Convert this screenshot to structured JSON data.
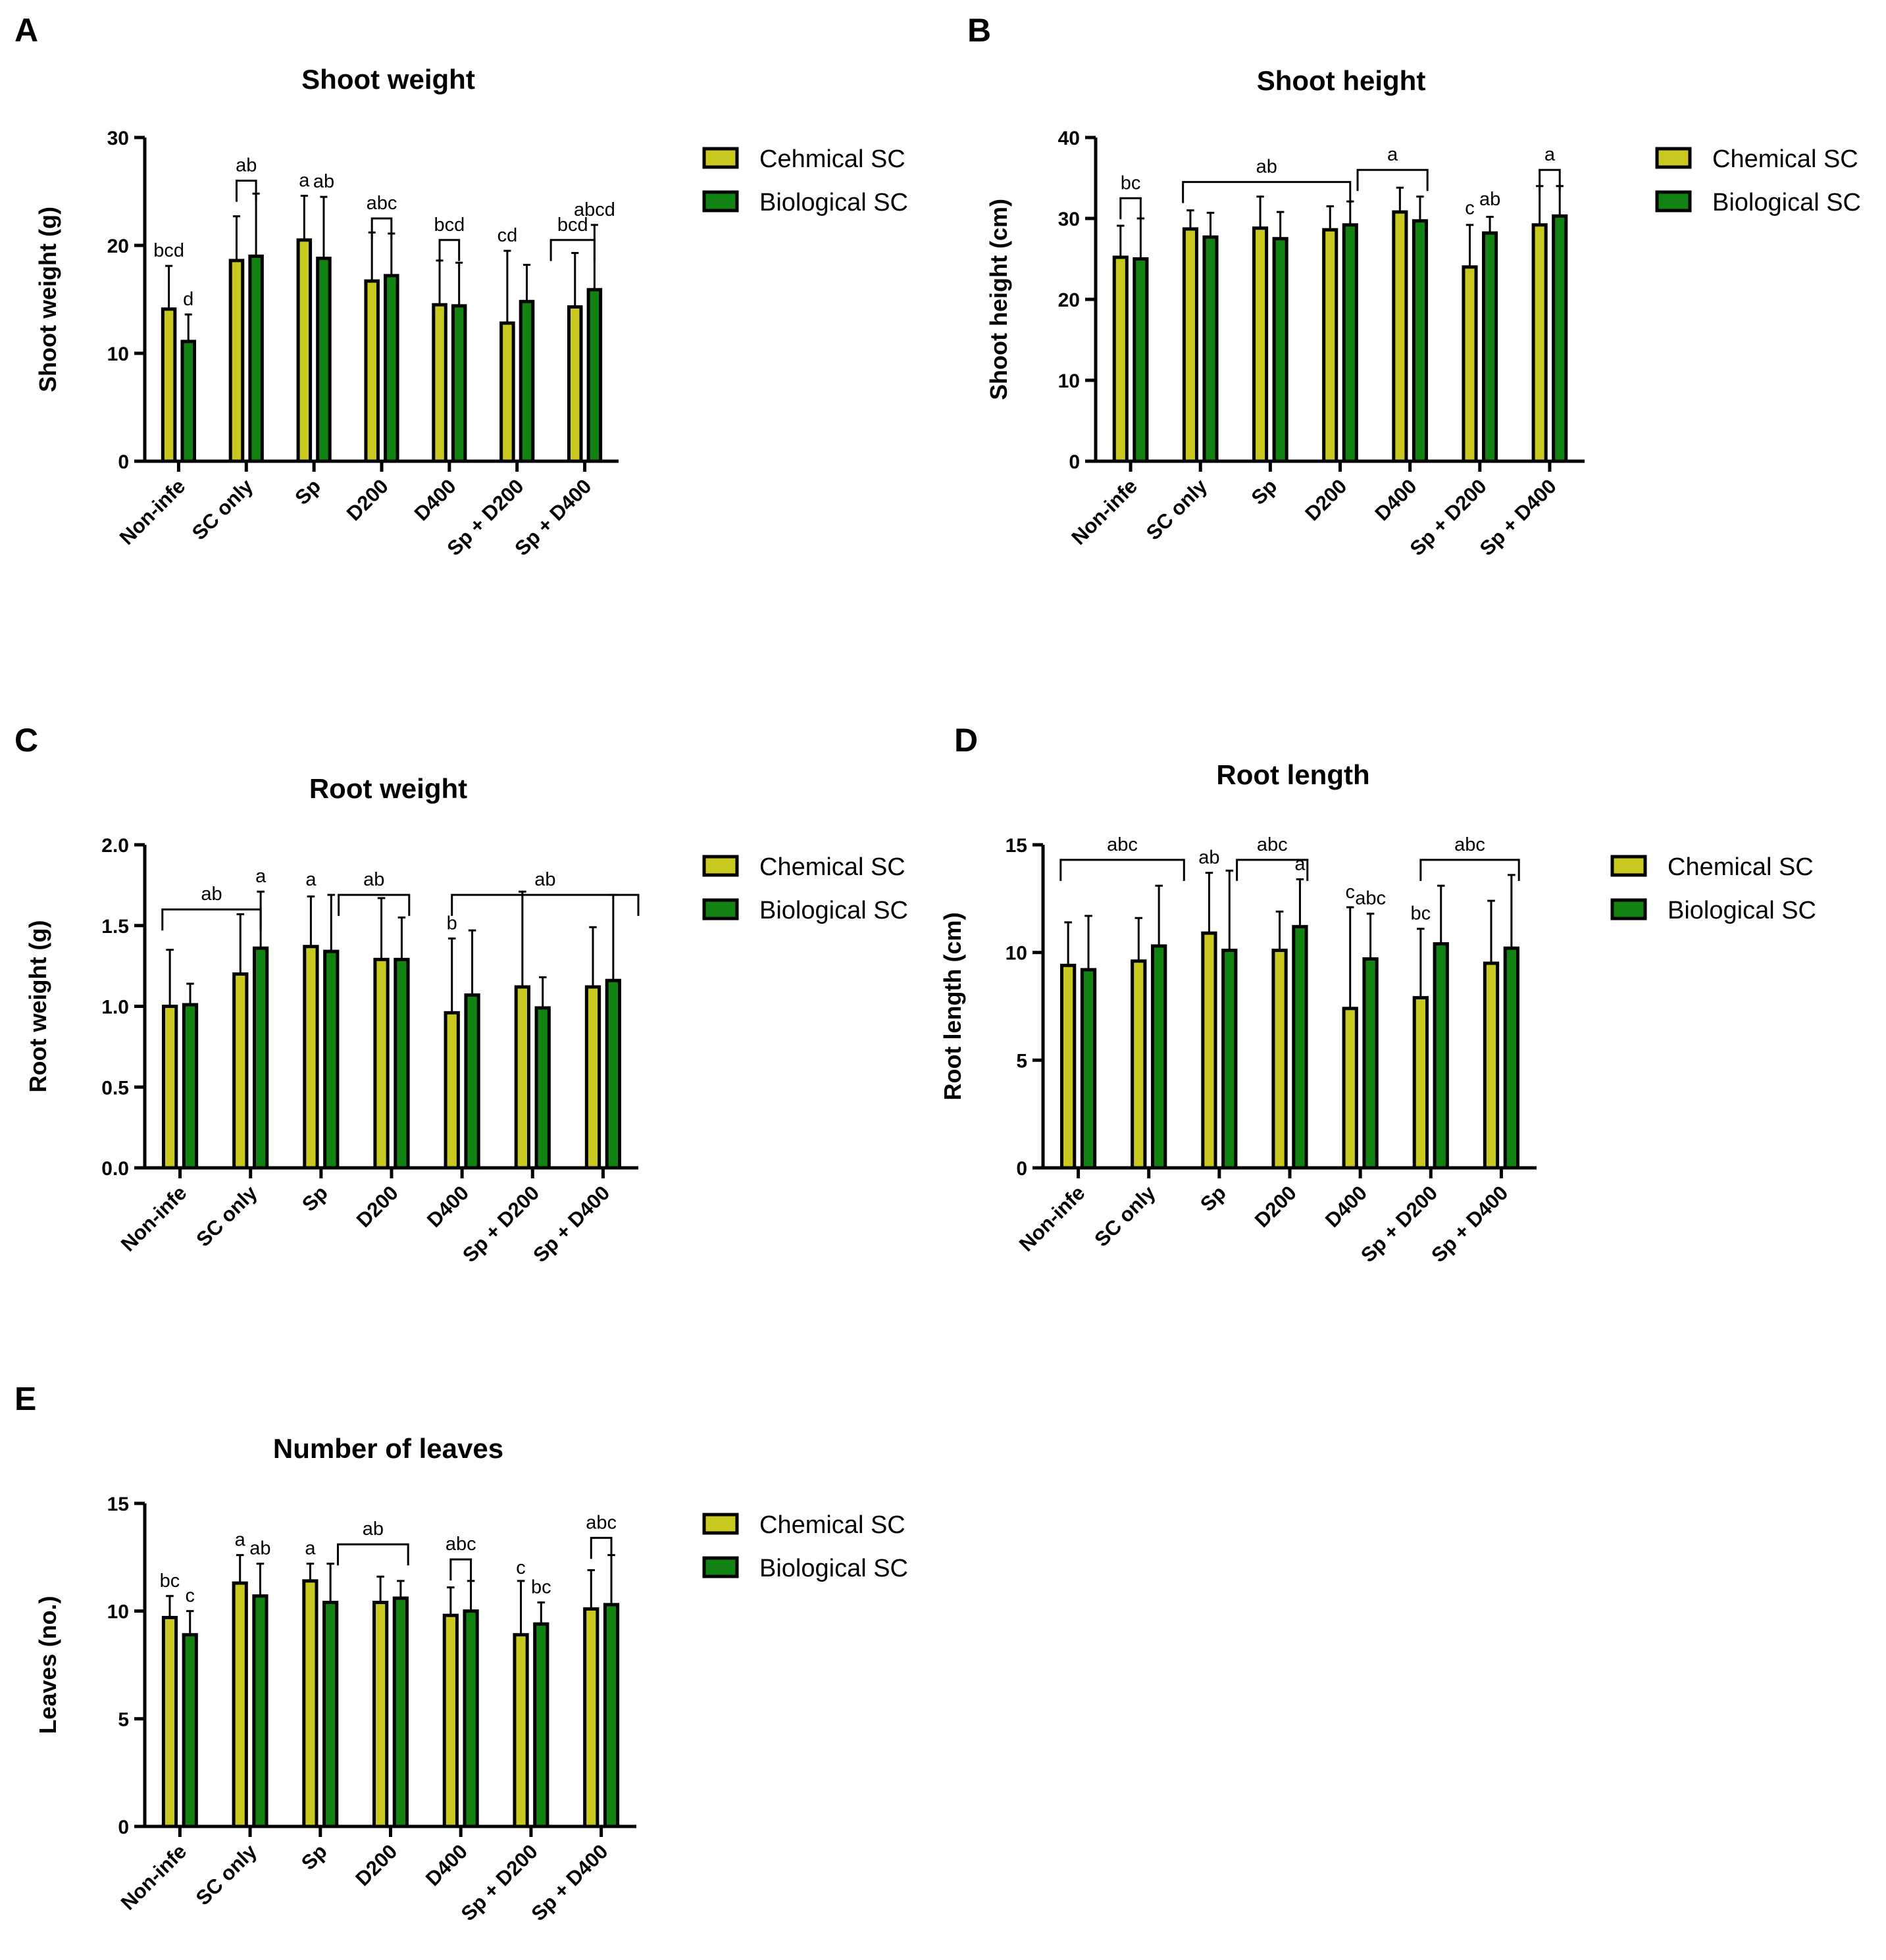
{
  "colors": {
    "chemical": "#c8c820",
    "biological": "#128212",
    "stroke": "#000000"
  },
  "chart_data": [
    {
      "panel": "A",
      "type": "bar",
      "title": "Shoot weight",
      "ylabel": "Shoot weight (g)",
      "ylim": [
        0,
        30
      ],
      "yticks": [
        0,
        10,
        20,
        30
      ],
      "ytick_labels": [
        "0",
        "10",
        "20",
        "30"
      ],
      "categories": [
        "Non-infe",
        "SC only",
        "Sp",
        "D200",
        "D400",
        "Sp + D200",
        "Sp + D400"
      ],
      "legend": [
        "Cehmical SC",
        "Biological SC"
      ],
      "series": [
        {
          "name": "Cehmical SC",
          "values": [
            14.1,
            18.6,
            20.5,
            16.7,
            14.5,
            12.8,
            14.3
          ],
          "errors": [
            4.0,
            4.1,
            4.1,
            4.5,
            4.1,
            6.7,
            5.0
          ]
        },
        {
          "name": "Biological SC",
          "values": [
            11.1,
            19.0,
            18.8,
            17.2,
            14.4,
            14.8,
            15.9
          ],
          "errors": [
            2.5,
            5.8,
            5.7,
            3.9,
            4.0,
            3.4,
            6.0
          ]
        }
      ],
      "annotations": [
        {
          "text": "bcd",
          "x": 0,
          "s": 0,
          "y": 18.1
        },
        {
          "text": "d",
          "x": 0,
          "s": 1,
          "y": 13.6
        },
        {
          "text": "ab",
          "x1": 1,
          "x2": 1,
          "y": 26.0
        },
        {
          "text": "a",
          "x": 2,
          "s": 0,
          "y": 24.6
        },
        {
          "text": "ab",
          "x": 2,
          "s": 1,
          "y": 24.5
        },
        {
          "text": "abc",
          "x1": 3,
          "x2": 3,
          "y": 22.5
        },
        {
          "text": "bcd",
          "x1": 4,
          "x2": 4,
          "y": 20.5
        },
        {
          "text": "cd",
          "x": 5,
          "s": 0,
          "y": 19.5
        },
        {
          "text": "bcd",
          "x1": 5.5,
          "x2": 6,
          "y": 20.5
        },
        {
          "text": "abcd",
          "x": 6,
          "s": 1,
          "y": 21.9
        }
      ]
    },
    {
      "panel": "B",
      "type": "bar",
      "title": "Shoot height",
      "ylabel": "Shoot height (cm)",
      "ylim": [
        0,
        40
      ],
      "yticks": [
        0,
        10,
        20,
        30,
        40
      ],
      "ytick_labels": [
        "0",
        "10",
        "20",
        "30",
        "40"
      ],
      "categories": [
        "Non-infe",
        "SC only",
        "Sp",
        "D200",
        "D400",
        "Sp + D200",
        "Sp + D400"
      ],
      "legend": [
        "Chemical SC",
        "Biological SC"
      ],
      "series": [
        {
          "name": "Chemical SC",
          "values": [
            25.2,
            28.7,
            28.8,
            28.6,
            30.8,
            24.0,
            29.2
          ],
          "errors": [
            3.9,
            2.3,
            3.9,
            2.9,
            3.0,
            5.2,
            4.8
          ]
        },
        {
          "name": "Biological SC",
          "values": [
            25.0,
            27.7,
            27.5,
            29.2,
            29.7,
            28.2,
            30.3
          ],
          "errors": [
            5.0,
            3.0,
            3.3,
            2.9,
            3.0,
            2.0,
            3.7
          ]
        }
      ],
      "annotations": [
        {
          "text": "bc",
          "x1": 0,
          "x2": 0,
          "y": 32.5
        },
        {
          "text": "ab",
          "x1": 0.75,
          "x2": 3,
          "y": 34.5
        },
        {
          "text": "a",
          "x1": 3.25,
          "x2": 4.25,
          "y": 36.0
        },
        {
          "text": "c",
          "x": 5,
          "s": 0,
          "y": 29.4
        },
        {
          "text": "ab",
          "x": 5,
          "s": 1,
          "y": 30.5
        },
        {
          "text": "a",
          "x1": 6,
          "x2": 6,
          "y": 36.0
        }
      ]
    },
    {
      "panel": "C",
      "type": "bar",
      "title": "Root weight",
      "ylabel": "Root weight (g)",
      "ylim": [
        0,
        2.0
      ],
      "yticks": [
        0,
        0.5,
        1.0,
        1.5,
        2.0
      ],
      "ytick_labels": [
        "0.0",
        "0.5",
        "1.0",
        "1.5",
        "2.0"
      ],
      "categories": [
        "Non-infe",
        "SC only",
        "Sp",
        "D200",
        "D400",
        "Sp + D200",
        "Sp + D400"
      ],
      "legend": [
        "Chemical SC",
        "Biological SC"
      ],
      "series": [
        {
          "name": "Chemical SC",
          "values": [
            1.0,
            1.2,
            1.37,
            1.29,
            0.96,
            1.12,
            1.12
          ],
          "errors": [
            0.35,
            0.37,
            0.31,
            0.38,
            0.46,
            0.59,
            0.37
          ]
        },
        {
          "name": "Biological SC",
          "values": [
            1.01,
            1.36,
            1.34,
            1.29,
            1.07,
            0.99,
            1.16
          ],
          "errors": [
            0.13,
            0.35,
            0.35,
            0.26,
            0.4,
            0.19,
            0.53
          ]
        }
      ],
      "annotations": [
        {
          "text": "ab",
          "x1": -0.25,
          "x2": 1.0,
          "y": 1.6
        },
        {
          "text": "a",
          "x": 1,
          "s": 1,
          "y": 1.71
        },
        {
          "text": "a",
          "x": 2,
          "s": 0,
          "y": 1.69
        },
        {
          "text": "ab",
          "x1": 2.25,
          "x2": 3.25,
          "y": 1.69
        },
        {
          "text": "b",
          "x": 4,
          "s": 0,
          "y": 1.42
        },
        {
          "text": "ab",
          "x1": 4.0,
          "x2": 6.5,
          "y": 1.69
        }
      ]
    },
    {
      "panel": "D",
      "type": "bar",
      "title": "Root length",
      "ylabel": "Root length (cm)",
      "ylim": [
        0,
        15
      ],
      "yticks": [
        0,
        5,
        10,
        15
      ],
      "ytick_labels": [
        "0",
        "5",
        "10",
        "15"
      ],
      "categories": [
        "Non-infe",
        "SC only",
        "Sp",
        "D200",
        "D400",
        "Sp + D200",
        "Sp + D400"
      ],
      "legend": [
        "Chemical SC",
        "Biological SC"
      ],
      "series": [
        {
          "name": "Chemical SC",
          "values": [
            9.4,
            9.6,
            10.9,
            10.1,
            7.4,
            7.9,
            9.5
          ],
          "errors": [
            2.0,
            2.0,
            2.8,
            1.8,
            4.7,
            3.2,
            2.9
          ]
        },
        {
          "name": "Biological SC",
          "values": [
            9.2,
            10.3,
            10.1,
            11.2,
            9.7,
            10.4,
            10.2
          ],
          "errors": [
            2.5,
            2.8,
            3.7,
            2.2,
            2.1,
            2.7,
            3.4
          ]
        }
      ],
      "annotations": [
        {
          "text": "abc",
          "x1": -0.25,
          "x2": 1.5,
          "y": 14.3
        },
        {
          "text": "ab",
          "x": 2,
          "s": 0,
          "y": 13.7
        },
        {
          "text": "abc",
          "x1": 2.25,
          "x2": 3.25,
          "y": 14.3
        },
        {
          "text": "a",
          "x": 3,
          "s": 1,
          "y": 13.4
        },
        {
          "text": "c",
          "x": 4,
          "s": 0,
          "y": 12.1
        },
        {
          "text": "abc",
          "x": 4,
          "s": 1,
          "y": 11.8
        },
        {
          "text": "bc",
          "x": 5,
          "s": 0,
          "y": 11.1
        },
        {
          "text": "abc",
          "x1": 5.0,
          "x2": 6.25,
          "y": 14.3
        }
      ]
    },
    {
      "panel": "E",
      "type": "bar",
      "title": "Number of leaves",
      "ylabel": "Leaves (no.)",
      "ylim": [
        0,
        15
      ],
      "yticks": [
        0,
        5,
        10,
        15
      ],
      "ytick_labels": [
        "0",
        "5",
        "10",
        "15"
      ],
      "categories": [
        "Non-infe",
        "SC only",
        "Sp",
        "D200",
        "D400",
        "Sp + D200",
        "Sp + D400"
      ],
      "legend": [
        "Chemical SC",
        "Biological SC"
      ],
      "series": [
        {
          "name": "Chemical SC",
          "values": [
            9.7,
            11.3,
            11.4,
            10.4,
            9.8,
            8.9,
            10.1
          ],
          "errors": [
            1.0,
            1.3,
            0.8,
            1.2,
            1.3,
            2.5,
            1.8
          ]
        },
        {
          "name": "Biological SC",
          "values": [
            8.9,
            10.7,
            10.4,
            10.6,
            10.0,
            9.4,
            10.3
          ],
          "errors": [
            1.1,
            1.5,
            1.8,
            0.8,
            1.4,
            1.0,
            2.3
          ]
        }
      ],
      "annotations": [
        {
          "text": "bc",
          "x": 0,
          "s": 0,
          "y": 10.7
        },
        {
          "text": "c",
          "x": 0,
          "s": 1,
          "y": 10.0
        },
        {
          "text": "a",
          "x": 1,
          "s": 0,
          "y": 12.6
        },
        {
          "text": "ab",
          "x": 1,
          "s": 1,
          "y": 12.2
        },
        {
          "text": "a",
          "x": 2,
          "s": 0,
          "y": 12.2
        },
        {
          "text": "ab",
          "x1": 2.25,
          "x2": 3.25,
          "y": 13.1
        },
        {
          "text": "abc",
          "x1": 4,
          "x2": 4,
          "y": 12.4
        },
        {
          "text": "c",
          "x": 5,
          "s": 0,
          "y": 11.3
        },
        {
          "text": "bc",
          "x": 5,
          "s": 1,
          "y": 10.4
        },
        {
          "text": "abc",
          "x1": 6,
          "x2": 6,
          "y": 13.4
        }
      ]
    }
  ]
}
